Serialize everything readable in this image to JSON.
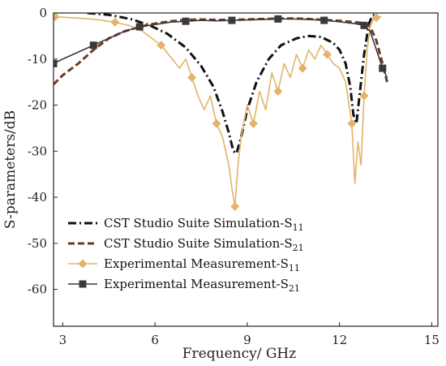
{
  "chart_data": {
    "type": "line",
    "xlabel": "Frequency/ GHz",
    "ylabel": "S-parameters/dB",
    "xlim": [
      2.7,
      15.2
    ],
    "ylim": [
      -68,
      0
    ],
    "xticks": [
      3,
      6,
      9,
      12,
      15
    ],
    "yticks": [
      0,
      -10,
      -20,
      -30,
      -40,
      -50,
      -60
    ],
    "grid": false,
    "legend_position": "bottom-left",
    "series": [
      {
        "name": "CST Studio Suite Simulation-S",
        "subscript": "11",
        "color": "#111111",
        "style": "dash-dot",
        "x": [
          3.8,
          4.5,
          5.2,
          5.8,
          6.4,
          7.0,
          7.5,
          7.9,
          8.2,
          8.4,
          8.55,
          8.65,
          8.8,
          9.0,
          9.3,
          9.7,
          10.1,
          10.6,
          11.0,
          11.4,
          11.8,
          12.0,
          12.2,
          12.35,
          12.45,
          12.55,
          12.65,
          12.8,
          12.95,
          13.05,
          13.2
        ],
        "y": [
          0,
          -0.4,
          -1.3,
          -2.6,
          -4.5,
          -7.5,
          -11.5,
          -16,
          -21.5,
          -26,
          -30,
          -30.5,
          -27,
          -21,
          -15,
          -10,
          -7,
          -5.5,
          -5,
          -5.2,
          -6.5,
          -8,
          -11,
          -16,
          -22,
          -24,
          -18,
          -9,
          -2.5,
          -0.8,
          0
        ]
      },
      {
        "name": "CST Studio Suite Simulation-S",
        "subscript": "21",
        "color": "#6e3a20",
        "style": "dash",
        "x": [
          2.7,
          3.0,
          3.5,
          4.0,
          4.5,
          5.0,
          5.5,
          6.0,
          6.5,
          7.0,
          7.5,
          8.0,
          8.5,
          9.0,
          9.5,
          10.0,
          10.5,
          11.0,
          11.5,
          12.0,
          12.5,
          12.8,
          13.0,
          13.2,
          13.4,
          13.55
        ],
        "y": [
          -15.5,
          -13.5,
          -11.0,
          -8.0,
          -5.5,
          -4.0,
          -3.0,
          -2.3,
          -1.8,
          -1.5,
          -1.4,
          -1.5,
          -1.5,
          -1.4,
          -1.3,
          -1.2,
          -1.2,
          -1.3,
          -1.5,
          -1.7,
          -2.0,
          -2.2,
          -3.0,
          -6.0,
          -11.0,
          -15.0
        ]
      },
      {
        "name": "Experimental Measurement-S",
        "subscript": "11",
        "color": "#e3b36a",
        "style": "solid-diamond",
        "x": [
          2.75,
          3.2,
          3.7,
          4.2,
          4.7,
          5.2,
          5.6,
          5.9,
          6.2,
          6.5,
          6.8,
          7.0,
          7.2,
          7.4,
          7.6,
          7.8,
          8.0,
          8.2,
          8.4,
          8.5,
          8.6,
          8.7,
          8.8,
          9.0,
          9.2,
          9.4,
          9.6,
          9.8,
          10.0,
          10.2,
          10.4,
          10.6,
          10.8,
          11.0,
          11.2,
          11.4,
          11.6,
          11.8,
          12.0,
          12.2,
          12.4,
          12.5,
          12.6,
          12.7,
          12.8,
          12.9,
          13.0,
          13.1,
          13.2,
          13.35
        ],
        "y": [
          -0.8,
          -1.0,
          -1.2,
          -1.5,
          -2.0,
          -2.8,
          -4.0,
          -5.5,
          -7.0,
          -9.5,
          -12.0,
          -10.0,
          -14.0,
          -18.0,
          -21.0,
          -18.0,
          -24.0,
          -27.0,
          -33.0,
          -38.0,
          -42.0,
          -33.0,
          -27.0,
          -20.0,
          -24.0,
          -17.0,
          -21.0,
          -13.0,
          -17.0,
          -11.0,
          -14.0,
          -9.0,
          -12.0,
          -8.0,
          -10.0,
          -7.0,
          -9.0,
          -11.0,
          -12.0,
          -15.0,
          -24.0,
          -37.0,
          -28.0,
          -33.0,
          -18.0,
          -8.0,
          -3.0,
          -1.5,
          -1.0,
          -0.8
        ]
      },
      {
        "name": "Experimental Measurement-S",
        "subscript": "21",
        "color": "#3a3a3a",
        "style": "solid-square",
        "x": [
          2.7,
          3.0,
          3.5,
          4.0,
          4.5,
          5.0,
          5.5,
          6.0,
          6.5,
          7.0,
          7.5,
          8.0,
          8.5,
          9.0,
          9.5,
          10.0,
          10.5,
          11.0,
          11.5,
          12.0,
          12.5,
          12.8,
          13.0,
          13.2,
          13.4,
          13.55
        ],
        "y": [
          -11.0,
          -10.0,
          -8.5,
          -7.0,
          -5.5,
          -4.0,
          -3.0,
          -2.5,
          -2.0,
          -1.8,
          -1.6,
          -1.7,
          -1.6,
          -1.5,
          -1.4,
          -1.3,
          -1.3,
          -1.4,
          -1.6,
          -1.9,
          -2.3,
          -2.7,
          -4.0,
          -8.0,
          -12.0,
          -14.0
        ]
      }
    ]
  }
}
